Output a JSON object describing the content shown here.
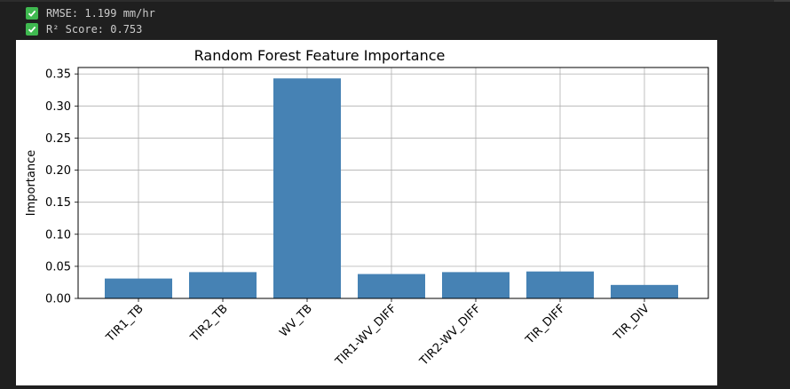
{
  "output": {
    "lines": [
      {
        "icon": "check-icon",
        "text": "RMSE: 1.199 mm/hr"
      },
      {
        "icon": "check-icon",
        "text": "R² Score: 0.753"
      }
    ],
    "check_color": "#3fb950"
  },
  "chart_data": {
    "type": "bar",
    "title": "Random Forest Feature Importance",
    "xlabel": "",
    "ylabel": "Importance",
    "categories": [
      "TIR1_TB",
      "TIR2_TB",
      "WV_TB",
      "TIR1-WV_DIFF",
      "TIR2-WV_DIFF",
      "TIR_DIFF",
      "TIR_DIV"
    ],
    "values": [
      0.031,
      0.041,
      0.343,
      0.038,
      0.041,
      0.042,
      0.021
    ],
    "ylim": [
      0,
      0.36
    ],
    "yticks": [
      "0.00",
      "0.05",
      "0.10",
      "0.15",
      "0.20",
      "0.25",
      "0.30",
      "0.35"
    ],
    "grid": true,
    "bar_color": "#4682b4"
  }
}
